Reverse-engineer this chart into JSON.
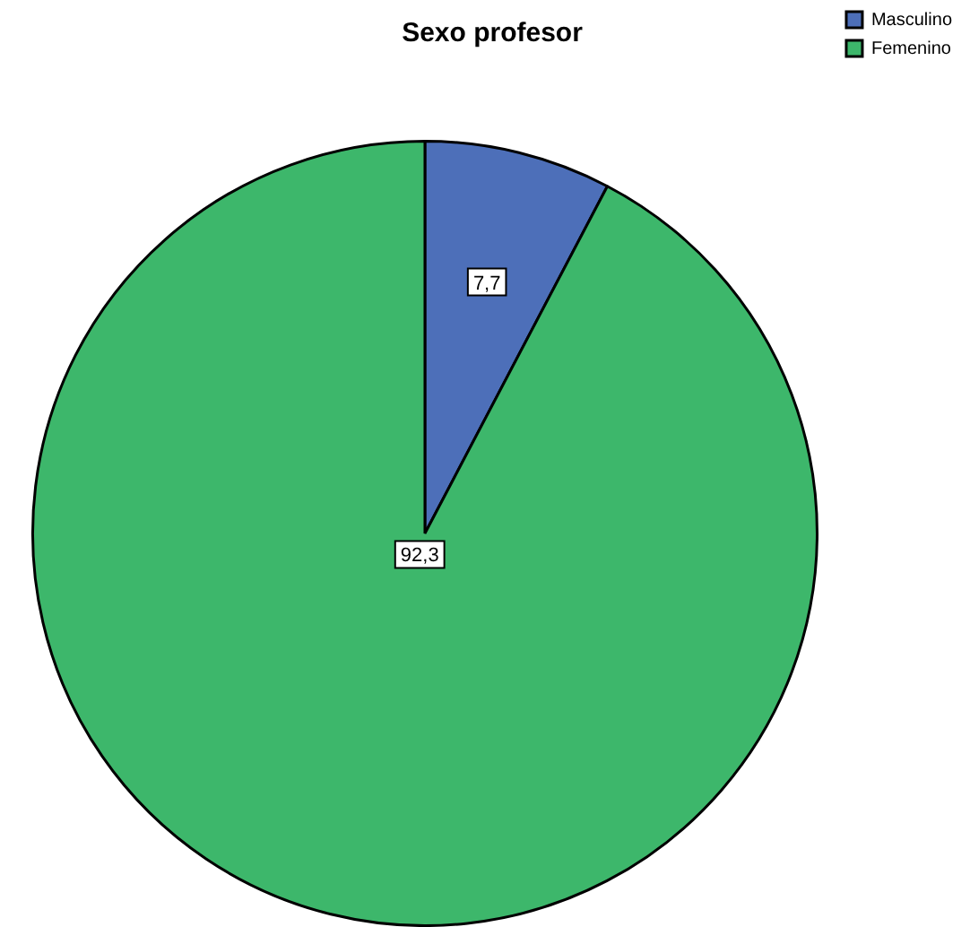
{
  "chart_data": {
    "type": "pie",
    "title": "Sexo profesor",
    "categories": [
      "Masculino",
      "Femenino"
    ],
    "values": [
      7.7,
      92.3
    ],
    "value_labels": [
      "7,7",
      "92,3"
    ],
    "colors": [
      "#4d6fb9",
      "#3db76b"
    ],
    "legend": "top right"
  }
}
